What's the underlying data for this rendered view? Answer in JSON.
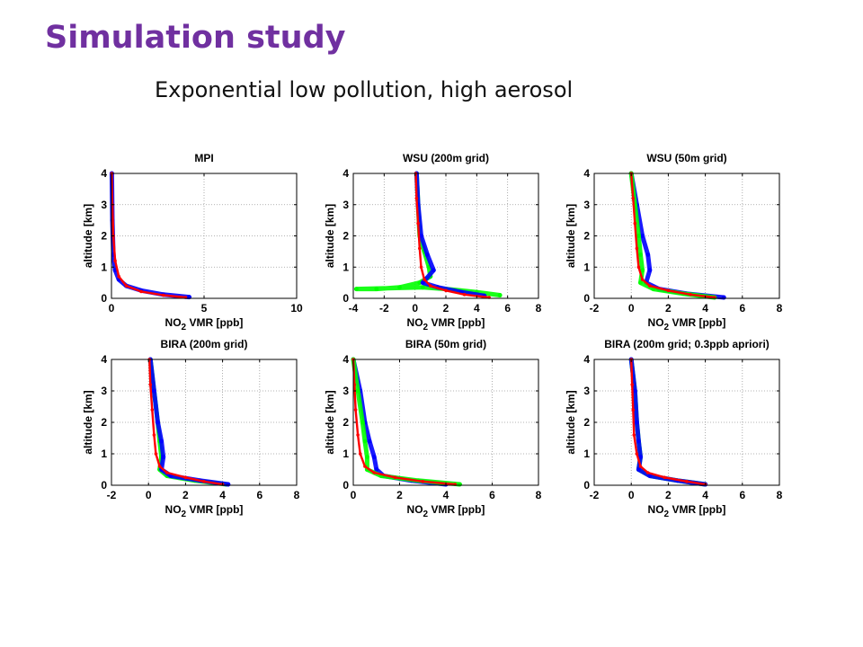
{
  "slide": {
    "title": "Simulation study",
    "subtitle": "Exponential low pollution, high aerosol"
  },
  "colors": {
    "title": "#7030a0",
    "series_blue": "#0000ff",
    "series_green": "#00ff00",
    "series_red": "#ff0000",
    "grid": "#9a9a9a"
  },
  "chart_data": [
    {
      "type": "scatter",
      "title": "MPI",
      "xlabel": "NO2 VMR [ppb]",
      "ylabel": "altitude [km]",
      "xlim": [
        0,
        10
      ],
      "ylim": [
        0,
        4
      ],
      "xticks": [
        0,
        5,
        10
      ],
      "yticks": [
        0,
        1,
        2,
        3,
        4
      ],
      "grid": "dotted",
      "series": [
        {
          "color": "#0000ff",
          "x": [
            0.02,
            0.05,
            0.1,
            0.2,
            0.4,
            0.8,
            1.6,
            2.8,
            4.2
          ],
          "y": [
            4.0,
            2.5,
            1.4,
            0.9,
            0.6,
            0.4,
            0.25,
            0.12,
            0.04
          ]
        },
        {
          "color": "#ff0000",
          "x": [
            0.02,
            0.05,
            0.1,
            0.2,
            0.4,
            0.8,
            1.6,
            2.8,
            4.0
          ],
          "y": [
            4.0,
            3.0,
            2.0,
            1.2,
            0.7,
            0.4,
            0.22,
            0.1,
            0.03
          ]
        }
      ]
    },
    {
      "type": "scatter",
      "title": "WSU (200m grid)",
      "xlabel": "NO2 VMR [ppb]",
      "ylabel": "altitude [km]",
      "xlim": [
        -4,
        8
      ],
      "ylim": [
        0,
        4
      ],
      "xticks": [
        -4,
        -2,
        0,
        2,
        4,
        6,
        8
      ],
      "yticks": [
        0,
        1,
        2,
        3,
        4
      ],
      "grid": "dotted",
      "series": [
        {
          "color": "#00ff00",
          "x": [
            0.1,
            0.2,
            0.3,
            0.6,
            0.9,
            1.0,
            0.3,
            -1.0,
            -2.5,
            -3.8,
            0.5,
            2.0,
            4.0,
            5.5
          ],
          "y": [
            4.0,
            3.0,
            2.0,
            1.5,
            1.0,
            0.7,
            0.5,
            0.35,
            0.3,
            0.3,
            0.35,
            0.3,
            0.2,
            0.1
          ]
        },
        {
          "color": "#0000ff",
          "x": [
            0.1,
            0.2,
            0.4,
            0.8,
            1.2,
            0.5,
            1.5,
            3.0,
            4.5
          ],
          "y": [
            4.0,
            3.0,
            2.0,
            1.4,
            0.9,
            0.5,
            0.35,
            0.2,
            0.08
          ]
        },
        {
          "color": "#ff0000",
          "x": [
            0.05,
            0.1,
            0.2,
            0.3,
            0.4,
            0.6,
            1.0,
            2.0,
            3.2,
            4.8
          ],
          "y": [
            4.0,
            3.2,
            2.4,
            1.6,
            1.0,
            0.6,
            0.4,
            0.25,
            0.12,
            0.03
          ]
        }
      ]
    },
    {
      "type": "scatter",
      "title": "WSU (50m grid)",
      "xlabel": "NO2 VMR [ppb]",
      "ylabel": "altitude [km]",
      "xlim": [
        -2,
        8
      ],
      "ylim": [
        0,
        4
      ],
      "xticks": [
        -2,
        0,
        2,
        4,
        6,
        8
      ],
      "yticks": [
        0,
        1,
        2,
        3,
        4
      ],
      "grid": "dotted",
      "series": [
        {
          "color": "#0000ff",
          "x": [
            0.0,
            0.3,
            0.6,
            0.9,
            1.0,
            0.8,
            1.5,
            3.0,
            5.0
          ],
          "y": [
            4.0,
            3.0,
            2.0,
            1.4,
            0.9,
            0.5,
            0.3,
            0.15,
            0.03
          ]
        },
        {
          "color": "#00ff00",
          "x": [
            0.0,
            0.2,
            0.4,
            0.5,
            0.6,
            0.5,
            1.2,
            2.8,
            4.5
          ],
          "y": [
            4.0,
            3.0,
            2.0,
            1.4,
            0.9,
            0.5,
            0.3,
            0.15,
            0.03
          ]
        },
        {
          "color": "#ff0000",
          "x": [
            0.0,
            0.1,
            0.2,
            0.3,
            0.4,
            0.6,
            1.0,
            2.0,
            3.2,
            4.5
          ],
          "y": [
            4.0,
            3.2,
            2.4,
            1.6,
            1.0,
            0.6,
            0.4,
            0.25,
            0.12,
            0.03
          ]
        }
      ]
    },
    {
      "type": "scatter",
      "title": "BIRA (200m grid)",
      "xlabel": "NO2 VMR [ppb]",
      "ylabel": "altitude [km]",
      "xlim": [
        -2,
        8
      ],
      "ylim": [
        0,
        4
      ],
      "xticks": [
        -2,
        0,
        2,
        4,
        6,
        8
      ],
      "yticks": [
        0,
        1,
        2,
        3,
        4
      ],
      "grid": "dotted",
      "series": [
        {
          "color": "#00ff00",
          "x": [
            0.1,
            0.3,
            0.5,
            0.6,
            0.7,
            0.6,
            1.0,
            2.5,
            4.2
          ],
          "y": [
            4.0,
            3.0,
            2.0,
            1.4,
            0.9,
            0.5,
            0.3,
            0.15,
            0.03
          ]
        },
        {
          "color": "#0000ff",
          "x": [
            0.1,
            0.3,
            0.5,
            0.7,
            0.8,
            0.7,
            1.2,
            2.8,
            4.3
          ],
          "y": [
            4.0,
            3.0,
            2.0,
            1.4,
            0.9,
            0.5,
            0.3,
            0.15,
            0.03
          ]
        },
        {
          "color": "#ff0000",
          "x": [
            0.05,
            0.1,
            0.2,
            0.3,
            0.4,
            0.6,
            1.0,
            2.0,
            3.0,
            4.0
          ],
          "y": [
            4.0,
            3.2,
            2.4,
            1.6,
            1.0,
            0.6,
            0.4,
            0.25,
            0.12,
            0.03
          ]
        }
      ]
    },
    {
      "type": "scatter",
      "title": "BIRA (50m grid)",
      "xlabel": "NO2 VMR [ppb]",
      "ylabel": "altitude [km]",
      "xlim": [
        0,
        8
      ],
      "ylim": [
        0,
        4
      ],
      "xticks": [
        0,
        2,
        4,
        6,
        8
      ],
      "yticks": [
        0,
        1,
        2,
        3,
        4
      ],
      "grid": "dotted",
      "series": [
        {
          "color": "#0000ff",
          "x": [
            0.0,
            0.3,
            0.5,
            0.7,
            0.9,
            1.0,
            1.3,
            2.5,
            4.0
          ],
          "y": [
            4.0,
            3.0,
            2.0,
            1.4,
            0.9,
            0.5,
            0.3,
            0.15,
            0.03
          ]
        },
        {
          "color": "#00ff00",
          "x": [
            0.0,
            0.2,
            0.4,
            0.5,
            0.6,
            0.6,
            1.2,
            2.8,
            4.6
          ],
          "y": [
            4.0,
            3.0,
            2.0,
            1.4,
            0.9,
            0.5,
            0.3,
            0.15,
            0.03
          ]
        },
        {
          "color": "#ff0000",
          "x": [
            0.0,
            0.05,
            0.1,
            0.2,
            0.3,
            0.5,
            0.9,
            1.8,
            3.0,
            4.4
          ],
          "y": [
            4.0,
            3.2,
            2.4,
            1.6,
            1.0,
            0.6,
            0.4,
            0.25,
            0.12,
            0.03
          ]
        }
      ]
    },
    {
      "type": "scatter",
      "title": "BIRA (200m grid; 0.3ppb apriori)",
      "xlabel": "NO2 VMR [ppb]",
      "ylabel": "altitude [km]",
      "xlim": [
        -2,
        8
      ],
      "ylim": [
        0,
        4
      ],
      "xticks": [
        -2,
        0,
        2,
        4,
        6,
        8
      ],
      "yticks": [
        0,
        1,
        2,
        3,
        4
      ],
      "grid": "dotted",
      "series": [
        {
          "color": "#00ff00",
          "x": [
            0.0,
            0.2,
            0.3,
            0.4,
            0.5,
            0.4,
            1.0,
            2.5,
            4.0
          ],
          "y": [
            4.0,
            3.0,
            2.0,
            1.4,
            0.9,
            0.5,
            0.3,
            0.15,
            0.03
          ]
        },
        {
          "color": "#0000ff",
          "x": [
            0.0,
            0.2,
            0.3,
            0.4,
            0.5,
            0.4,
            1.0,
            2.5,
            4.0
          ],
          "y": [
            4.0,
            3.0,
            2.0,
            1.4,
            0.9,
            0.5,
            0.3,
            0.15,
            0.03
          ]
        },
        {
          "color": "#ff0000",
          "x": [
            0.0,
            0.05,
            0.1,
            0.15,
            0.3,
            0.5,
            0.9,
            1.8,
            3.0,
            4.0
          ],
          "y": [
            4.0,
            3.2,
            2.4,
            1.6,
            1.0,
            0.6,
            0.4,
            0.25,
            0.12,
            0.03
          ]
        }
      ]
    }
  ]
}
